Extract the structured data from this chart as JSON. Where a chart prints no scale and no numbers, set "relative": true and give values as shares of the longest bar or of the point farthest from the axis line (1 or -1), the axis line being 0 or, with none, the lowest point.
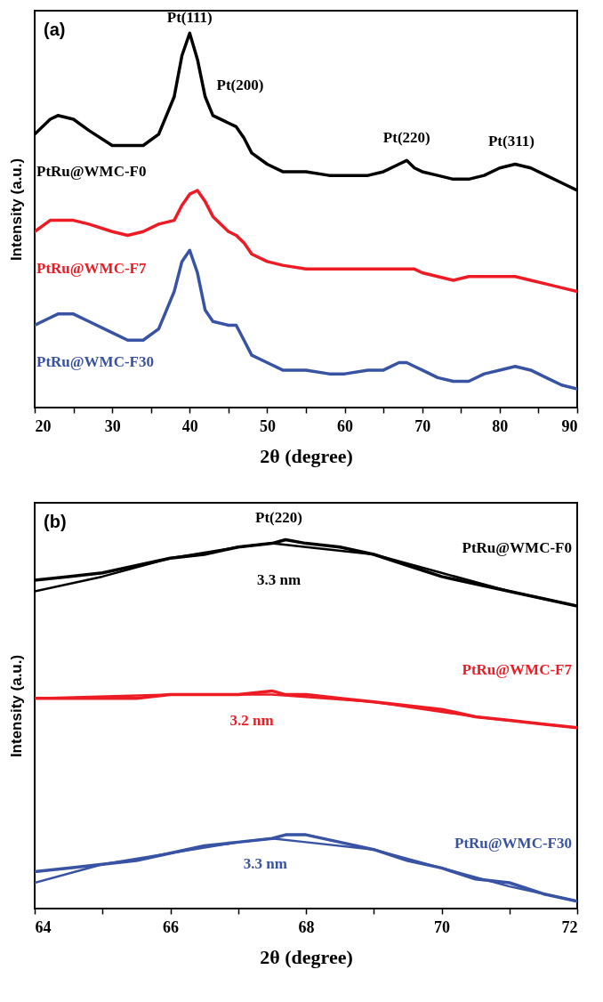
{
  "chart_data": [
    {
      "type": "line",
      "relative": true,
      "xlabel": "2θ (degree)",
      "ylabel": "Intensity (a.u.)",
      "xlim": [
        20,
        90
      ],
      "xticks": [
        20,
        {
          "value": 25,
          "label": null
        },
        30,
        {
          "value": 35,
          "label": null
        },
        40,
        {
          "value": 45,
          "label": null
        },
        50,
        {
          "value": 55,
          "label": null
        },
        60,
        {
          "value": 65,
          "label": null
        },
        70,
        {
          "value": 75,
          "label": null
        },
        80,
        {
          "value": 85,
          "label": null
        },
        90
      ],
      "x": [
        20,
        22,
        23,
        25,
        27,
        30,
        32,
        34,
        36,
        38,
        39,
        40,
        41,
        42,
        43,
        45,
        46,
        47,
        48,
        50,
        52,
        55,
        58,
        60,
        63,
        65,
        67,
        68,
        69,
        70,
        72,
        74,
        76,
        78,
        80,
        82,
        84,
        86,
        88,
        90
      ],
      "series": [
        {
          "name": "PtRu@WMC-F0",
          "color": "#000000",
          "values": [
            0.73,
            0.77,
            0.78,
            0.77,
            0.74,
            0.7,
            0.7,
            0.7,
            0.73,
            0.83,
            0.94,
            1.0,
            0.93,
            0.83,
            0.78,
            0.76,
            0.75,
            0.72,
            0.68,
            0.65,
            0.63,
            0.63,
            0.62,
            0.62,
            0.62,
            0.63,
            0.65,
            0.66,
            0.64,
            0.63,
            0.62,
            0.61,
            0.61,
            0.62,
            0.64,
            0.65,
            0.64,
            0.62,
            0.6,
            0.58
          ]
        },
        {
          "name": "PtRu@WMC-F7",
          "color": "#ed1c24",
          "values": [
            0.47,
            0.5,
            0.5,
            0.5,
            0.49,
            0.47,
            0.46,
            0.47,
            0.49,
            0.5,
            0.54,
            0.57,
            0.58,
            0.55,
            0.51,
            0.47,
            0.46,
            0.44,
            0.41,
            0.39,
            0.38,
            0.37,
            0.37,
            0.37,
            0.37,
            0.37,
            0.37,
            0.37,
            0.37,
            0.36,
            0.35,
            0.34,
            0.35,
            0.35,
            0.35,
            0.35,
            0.34,
            0.33,
            0.32,
            0.31
          ]
        },
        {
          "name": "PtRu@WMC-F30",
          "color": "#3953a4",
          "values": [
            0.22,
            0.24,
            0.25,
            0.25,
            0.23,
            0.2,
            0.18,
            0.18,
            0.21,
            0.31,
            0.39,
            0.42,
            0.36,
            0.26,
            0.23,
            0.22,
            0.22,
            0.18,
            0.14,
            0.12,
            0.1,
            0.1,
            0.09,
            0.09,
            0.1,
            0.1,
            0.12,
            0.12,
            0.11,
            0.1,
            0.08,
            0.07,
            0.07,
            0.09,
            0.1,
            0.11,
            0.1,
            0.08,
            0.06,
            0.05
          ]
        }
      ],
      "annotations": [
        "(a)",
        "Pt(111)",
        "Pt(200)",
        "Pt(220)",
        "Pt(311)"
      ]
    },
    {
      "type": "line",
      "relative": true,
      "xlabel": "2θ (degree)",
      "ylabel": "Intensity (a.u.)",
      "xlim": [
        64,
        72
      ],
      "xticks": [
        64,
        {
          "value": 65,
          "label": null
        },
        66,
        {
          "value": 67,
          "label": null
        },
        68,
        {
          "value": 69,
          "label": null
        },
        70,
        {
          "value": 71,
          "label": null
        },
        72
      ],
      "x": [
        64,
        64.5,
        65,
        65.5,
        66,
        66.5,
        67,
        67.5,
        67.7,
        68,
        68.5,
        69,
        69.5,
        70,
        70.5,
        71,
        71.5,
        72
      ],
      "series": [
        {
          "name": "PtRu@WMC-F0",
          "color": "#000000",
          "values": [
            0.89,
            0.9,
            0.91,
            0.93,
            0.95,
            0.96,
            0.98,
            0.99,
            1.0,
            0.99,
            0.98,
            0.96,
            0.93,
            0.9,
            0.88,
            0.86,
            0.84,
            0.82
          ]
        },
        {
          "type": "line",
          "color": "#000000",
          "x": [
            64,
            65,
            66,
            67,
            67.5,
            68,
            69,
            70,
            71,
            72
          ],
          "values": [
            0.86,
            0.9,
            0.95,
            0.98,
            0.99,
            0.98,
            0.96,
            0.91,
            0.86,
            0.82
          ]
        },
        {
          "name": "PtRu@WMC-F7",
          "color": "#ed1c24",
          "values": [
            0.57,
            0.57,
            0.57,
            0.57,
            0.58,
            0.58,
            0.58,
            0.59,
            0.58,
            0.58,
            0.57,
            0.56,
            0.55,
            0.54,
            0.52,
            0.51,
            0.5,
            0.49
          ]
        },
        {
          "type": "line",
          "color": "#ed1c24",
          "x": [
            64,
            66,
            67.5,
            69,
            70.5,
            72
          ],
          "values": [
            0.57,
            0.58,
            0.58,
            0.56,
            0.52,
            0.49
          ]
        },
        {
          "name": "PtRu@WMC-F30",
          "color": "#3953a4",
          "values": [
            0.1,
            0.11,
            0.12,
            0.13,
            0.15,
            0.17,
            0.18,
            0.19,
            0.2,
            0.2,
            0.18,
            0.16,
            0.13,
            0.11,
            0.08,
            0.07,
            0.04,
            0.02
          ]
        },
        {
          "type": "line",
          "color": "#3953a4",
          "x": [
            64,
            65,
            66,
            67,
            67.5,
            68,
            69,
            70,
            71,
            72
          ],
          "values": [
            0.07,
            0.12,
            0.15,
            0.18,
            0.19,
            0.18,
            0.16,
            0.11,
            0.06,
            0.02
          ]
        }
      ],
      "annotations": [
        "(b)",
        "Pt(220)",
        "3.3 nm",
        "3.2 nm",
        "3.3 nm"
      ]
    }
  ]
}
